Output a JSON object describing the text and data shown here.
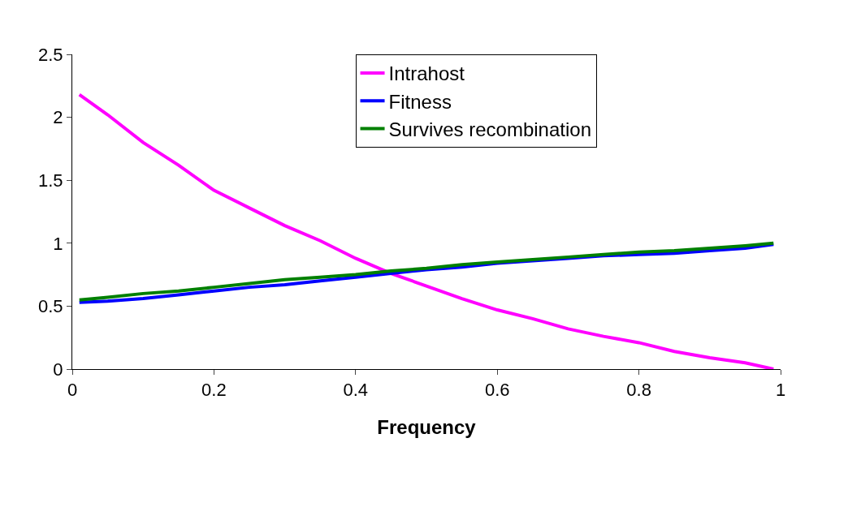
{
  "chart_data": {
    "type": "line",
    "xlabel": "Frequency",
    "x": [
      0.01,
      0.05,
      0.1,
      0.15,
      0.2,
      0.25,
      0.3,
      0.35,
      0.4,
      0.45,
      0.5,
      0.55,
      0.6,
      0.65,
      0.7,
      0.75,
      0.8,
      0.85,
      0.9,
      0.95,
      0.99
    ],
    "series": [
      {
        "name": "Intrahost",
        "color": "#ff00ff",
        "values": [
          2.18,
          2.02,
          1.8,
          1.62,
          1.42,
          1.28,
          1.14,
          1.02,
          0.88,
          0.76,
          0.66,
          0.56,
          0.47,
          0.4,
          0.32,
          0.26,
          0.21,
          0.14,
          0.09,
          0.05,
          0.0
        ]
      },
      {
        "name": "Fitness",
        "color": "#0000ff",
        "values": [
          0.53,
          0.54,
          0.56,
          0.59,
          0.62,
          0.65,
          0.67,
          0.7,
          0.73,
          0.76,
          0.79,
          0.81,
          0.84,
          0.86,
          0.88,
          0.9,
          0.91,
          0.92,
          0.94,
          0.96,
          0.99
        ]
      },
      {
        "name": "Survives recombination",
        "color": "#008000",
        "values": [
          0.55,
          0.57,
          0.6,
          0.62,
          0.65,
          0.68,
          0.71,
          0.73,
          0.75,
          0.78,
          0.8,
          0.83,
          0.85,
          0.87,
          0.89,
          0.91,
          0.93,
          0.94,
          0.96,
          0.98,
          1.0
        ]
      }
    ],
    "xlim": [
      0,
      1
    ],
    "xticks": [
      0,
      0.2,
      0.4,
      0.6,
      0.8,
      1
    ],
    "ylim": [
      0,
      2.5
    ],
    "yticks": [
      0,
      0.5,
      1,
      1.5,
      2,
      2.5
    ],
    "grid": false,
    "legend": "top",
    "marker": "none",
    "line_style": "solid"
  }
}
